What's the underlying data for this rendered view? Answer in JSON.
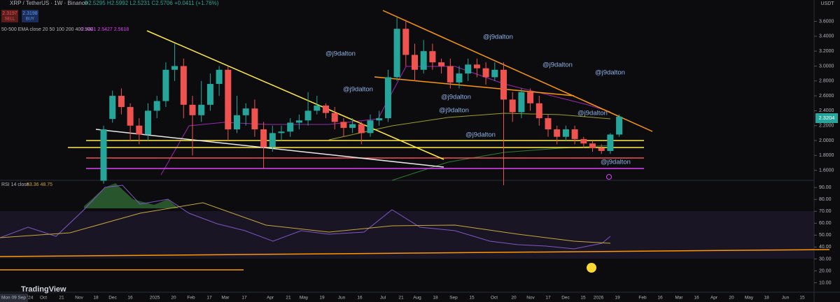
{
  "header": {
    "symbol": "XRP / TetherUS · 1W · Binance",
    "ohlc": "O2.5295 H2.5992 L2.5231 C2.5706 +0.0411 (+1.76%)",
    "sell_price": "2.3197",
    "sell": "SELL",
    "buy_price": "2.3198",
    "buy": "BUY",
    "ema_label": "50-500 EMA close 20 50 100 200 400 500",
    "ema_values": "2.7441 2.5427 2.5618",
    "currency": "USDT"
  },
  "rsi_label": "RSI 14 close",
  "rsi_values": "53.36 48.75",
  "current_price": "2.3204",
  "logo": "TradingView",
  "first_date": "Mon 09 Sep '24",
  "watermarks": [
    "@j9dalton",
    "@j9dalton",
    "@j9dalton",
    "@j9dalton",
    "@j9dalton",
    "@j9dalton",
    "@j9dalton",
    "@j9dalton",
    "@j9dalton",
    "@j9dalton"
  ],
  "time_labels": [
    "Oct",
    "21",
    "Nov",
    "18",
    "Dec",
    "16",
    "2025",
    "20",
    "Feb",
    "17",
    "Mar",
    "17",
    "Apr",
    "21",
    "May",
    "19",
    "Jun",
    "16",
    "Jul",
    "21",
    "Aug",
    "18",
    "Sep",
    "15",
    "Oct",
    "20",
    "Nov",
    "17",
    "Dec",
    "15",
    "2026",
    "19",
    "Feb",
    "16",
    "Mar",
    "16",
    "Apr",
    "20",
    "May",
    "18",
    "Jun",
    "15"
  ],
  "chart_data": {
    "type": "candlestick",
    "ylim": [
      1.465,
      3.793
    ],
    "yticks": [
      {
        "value": 1.6,
        "label": "1.6000"
      },
      {
        "value": 1.8,
        "label": "1.8000"
      },
      {
        "value": 2.0,
        "label": "2.0000"
      },
      {
        "value": 2.2,
        "label": "2.2000"
      },
      {
        "value": 2.4,
        "label": "2.4000"
      },
      {
        "value": 2.6,
        "label": "2.6000"
      },
      {
        "value": 2.8,
        "label": "2.8000"
      },
      {
        "value": 3.0,
        "label": "3.0000"
      },
      {
        "value": 3.2,
        "label": "3.2000"
      },
      {
        "value": 3.4,
        "label": "3.4000"
      },
      {
        "value": 3.6,
        "label": "3.6000"
      }
    ],
    "up_color": "#26a69a",
    "down_color": "#ef5350",
    "open": [
      1.46,
      2.29,
      2.6,
      2.45,
      2.2,
      2.08,
      2.4,
      2.53,
      2.95,
      3.0,
      2.48,
      2.34,
      2.48,
      2.76,
      2.95,
      2.15,
      2.34,
      2.43,
      2.15,
      1.91,
      2.1,
      2.12,
      2.24,
      2.27,
      2.4,
      2.47,
      2.37,
      2.25,
      2.17,
      2.22,
      2.1,
      2.27,
      2.3,
      2.85,
      3.5,
      3.15,
      2.95,
      3.2,
      3.05,
      3.0,
      2.78,
      2.9,
      3.02,
      2.97,
      2.85,
      2.95,
      2.55,
      2.38,
      2.65,
      2.5,
      2.3,
      2.15,
      2.05,
      2.15,
      2.02,
      1.96,
      1.9,
      1.86,
      2.08
    ],
    "high": [
      2.2,
      2.67,
      2.7,
      2.5,
      2.3,
      2.5,
      2.6,
      3.05,
      3.3,
      3.1,
      2.6,
      2.8,
      2.9,
      3.0,
      3.0,
      2.6,
      2.5,
      2.55,
      2.25,
      2.2,
      2.2,
      2.3,
      2.35,
      2.65,
      2.6,
      2.5,
      2.45,
      2.3,
      2.3,
      2.25,
      2.35,
      2.4,
      2.95,
      3.65,
      3.62,
      3.3,
      3.35,
      3.3,
      3.1,
      3.1,
      3.0,
      3.1,
      3.1,
      3.05,
      3.05,
      3.05,
      2.65,
      2.7,
      2.7,
      2.6,
      2.35,
      2.2,
      2.2,
      2.2,
      2.05,
      2.0,
      1.95,
      2.1,
      2.35
    ],
    "low": [
      1.42,
      2.24,
      2.35,
      2.0,
      1.95,
      2.0,
      2.3,
      2.45,
      2.8,
      2.3,
      1.8,
      2.25,
      2.4,
      2.6,
      2.0,
      2.1,
      2.2,
      2.05,
      1.62,
      1.85,
      2.0,
      2.05,
      2.15,
      2.2,
      2.35,
      2.3,
      2.15,
      2.05,
      2.1,
      1.95,
      2.05,
      2.2,
      2.25,
      2.8,
      3.0,
      2.8,
      2.9,
      2.95,
      2.9,
      2.7,
      2.7,
      2.8,
      2.85,
      2.75,
      2.8,
      1.4,
      2.25,
      2.3,
      2.4,
      2.2,
      2.05,
      1.95,
      2.0,
      1.95,
      1.9,
      1.85,
      1.82,
      1.82,
      2.05
    ],
    "close": [
      2.15,
      2.6,
      2.45,
      2.2,
      2.08,
      2.4,
      2.53,
      2.95,
      3.0,
      2.48,
      2.34,
      2.48,
      2.76,
      2.95,
      2.15,
      2.34,
      2.43,
      2.15,
      1.91,
      2.1,
      2.12,
      2.24,
      2.27,
      2.4,
      2.47,
      2.37,
      2.25,
      2.17,
      2.22,
      2.1,
      2.27,
      2.3,
      2.85,
      3.5,
      3.15,
      2.95,
      3.2,
      3.05,
      3.0,
      2.78,
      2.9,
      3.02,
      2.97,
      2.85,
      2.95,
      2.55,
      2.38,
      2.65,
      2.5,
      2.3,
      2.15,
      2.05,
      2.15,
      2.02,
      1.96,
      1.9,
      1.86,
      2.08,
      2.32
    ]
  },
  "rsi_axis": {
    "ylim": [
      5,
      96
    ],
    "yticks": [
      {
        "value": 10,
        "label": "10.00"
      },
      {
        "value": 20,
        "label": "20.00"
      },
      {
        "value": 30,
        "label": "30.00"
      },
      {
        "value": 40,
        "label": "40.00"
      },
      {
        "value": 50,
        "label": "50.00"
      },
      {
        "value": 60,
        "label": "60.00"
      },
      {
        "value": 70,
        "label": "70.00"
      },
      {
        "value": 80,
        "label": "80.00"
      },
      {
        "value": 90,
        "label": "90.00"
      }
    ]
  }
}
